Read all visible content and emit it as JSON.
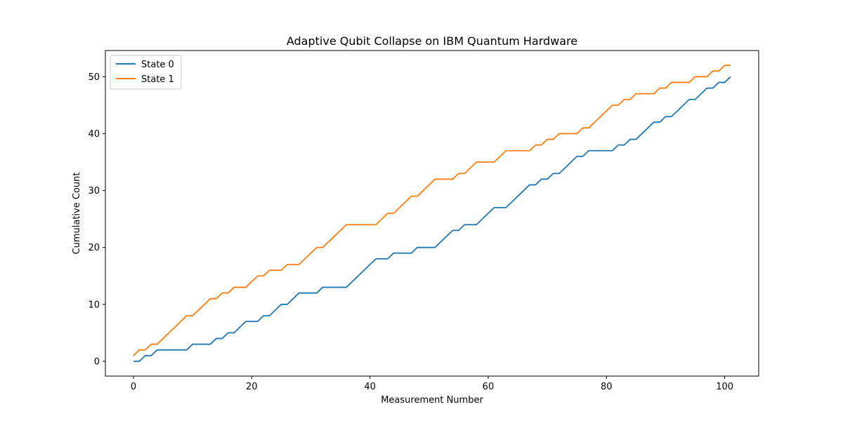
{
  "chart_data": {
    "type": "line",
    "title": "Adaptive Qubit Collapse on IBM Quantum Hardware",
    "xlabel": "Measurement Number",
    "ylabel": "Cumulative Count",
    "xlim": [
      -4.75,
      105.75
    ],
    "ylim": [
      -2.6,
      54.6
    ],
    "xticks": [
      0,
      20,
      40,
      60,
      80,
      100
    ],
    "yticks": [
      0,
      10,
      20,
      30,
      40,
      50
    ],
    "grid": false,
    "legend_position": "upper-left",
    "series": [
      {
        "name": "State 0",
        "color": "#1f77b4",
        "x": [
          0,
          1,
          2,
          3,
          4,
          5,
          6,
          7,
          8,
          9,
          10,
          11,
          12,
          13,
          14,
          15,
          16,
          17,
          18,
          19,
          20,
          21,
          22,
          23,
          24,
          25,
          26,
          27,
          28,
          29,
          30,
          31,
          32,
          33,
          34,
          35,
          36,
          37,
          38,
          39,
          40,
          41,
          42,
          43,
          44,
          45,
          46,
          47,
          48,
          49,
          50,
          51,
          52,
          53,
          54,
          55,
          56,
          57,
          58,
          59,
          60,
          61,
          62,
          63,
          64,
          65,
          66,
          67,
          68,
          69,
          70,
          71,
          72,
          73,
          74,
          75,
          76,
          77,
          78,
          79,
          80,
          81,
          82,
          83,
          84,
          85,
          86,
          87,
          88,
          89,
          90,
          91,
          92,
          93,
          94,
          95,
          96,
          97,
          98,
          99,
          100,
          101
        ],
        "y": [
          0,
          0,
          1,
          1,
          2,
          2,
          2,
          2,
          2,
          2,
          3,
          3,
          3,
          3,
          4,
          4,
          5,
          5,
          6,
          7,
          7,
          7,
          8,
          8,
          9,
          10,
          10,
          11,
          12,
          12,
          12,
          12,
          13,
          13,
          13,
          13,
          13,
          14,
          15,
          16,
          17,
          18,
          18,
          18,
          19,
          19,
          19,
          19,
          20,
          20,
          20,
          20,
          21,
          22,
          23,
          23,
          24,
          24,
          24,
          25,
          26,
          27,
          27,
          27,
          28,
          29,
          30,
          31,
          31,
          32,
          32,
          33,
          33,
          34,
          35,
          36,
          36,
          37,
          37,
          37,
          37,
          37,
          38,
          38,
          39,
          39,
          40,
          41,
          42,
          42,
          43,
          43,
          44,
          45,
          46,
          46,
          47,
          48,
          48,
          49,
          49,
          50
        ]
      },
      {
        "name": "State 1",
        "color": "#ff7f0e",
        "x": [
          0,
          1,
          2,
          3,
          4,
          5,
          6,
          7,
          8,
          9,
          10,
          11,
          12,
          13,
          14,
          15,
          16,
          17,
          18,
          19,
          20,
          21,
          22,
          23,
          24,
          25,
          26,
          27,
          28,
          29,
          30,
          31,
          32,
          33,
          34,
          35,
          36,
          37,
          38,
          39,
          40,
          41,
          42,
          43,
          44,
          45,
          46,
          47,
          48,
          49,
          50,
          51,
          52,
          53,
          54,
          55,
          56,
          57,
          58,
          59,
          60,
          61,
          62,
          63,
          64,
          65,
          66,
          67,
          68,
          69,
          70,
          71,
          72,
          73,
          74,
          75,
          76,
          77,
          78,
          79,
          80,
          81,
          82,
          83,
          84,
          85,
          86,
          87,
          88,
          89,
          90,
          91,
          92,
          93,
          94,
          95,
          96,
          97,
          98,
          99,
          100,
          101
        ],
        "y": [
          1,
          2,
          2,
          3,
          3,
          4,
          5,
          6,
          7,
          8,
          8,
          9,
          10,
          11,
          11,
          12,
          12,
          13,
          13,
          13,
          14,
          15,
          15,
          16,
          16,
          16,
          17,
          17,
          17,
          18,
          19,
          20,
          20,
          21,
          22,
          23,
          24,
          24,
          24,
          24,
          24,
          24,
          25,
          26,
          26,
          27,
          28,
          29,
          29,
          30,
          31,
          32,
          32,
          32,
          32,
          33,
          33,
          34,
          35,
          35,
          35,
          35,
          36,
          37,
          37,
          37,
          37,
          37,
          38,
          38,
          39,
          39,
          40,
          40,
          40,
          40,
          41,
          41,
          42,
          43,
          44,
          45,
          45,
          46,
          46,
          47,
          47,
          47,
          47,
          48,
          48,
          49,
          49,
          49,
          49,
          50,
          50,
          50,
          51,
          51,
          52,
          52
        ]
      }
    ]
  }
}
